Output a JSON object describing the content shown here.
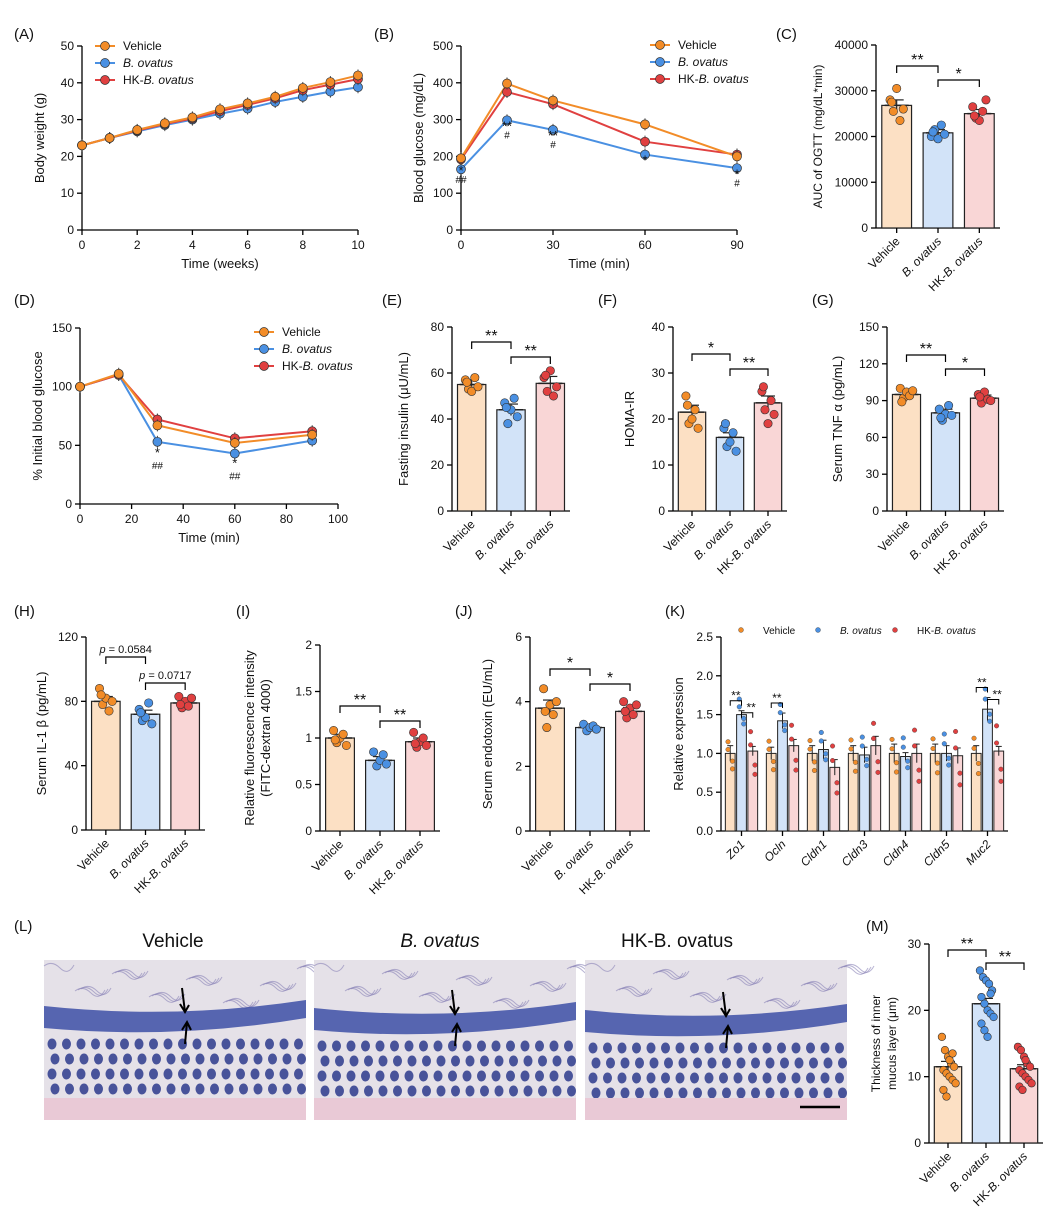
{
  "colors": {
    "vehicle": "#F28C28",
    "ovatus": "#4A90E2",
    "hk": "#E04040",
    "vehicle_fill": "#FCE0C4",
    "ovatus_fill": "#D2E3F8",
    "hk_fill": "#F9D6D6"
  },
  "panel_letters": {
    "A": "(A)",
    "B": "(B)",
    "C": "(C)",
    "D": "(D)",
    "E": "(E)",
    "F": "(F)",
    "G": "(G)",
    "H": "(H)",
    "I": "(I)",
    "J": "(J)",
    "K": "(K)",
    "L": "(L)",
    "M": "(M)"
  },
  "legend": {
    "vehicle": "Vehicle",
    "ovatus": "B. ovatus",
    "hk": "HK-B. ovatus"
  },
  "group_labels": [
    "Vehicle",
    "B. ovatus",
    "HK-B. ovatus"
  ],
  "histology": {
    "titles": [
      "Vehicle",
      "B. ovatus",
      "HK-B. ovatus"
    ]
  },
  "chart_data": [
    {
      "id": "A",
      "type": "line",
      "xlabel": "Time (weeks)",
      "ylabel": "Body weight (g)",
      "xlim": [
        0,
        10
      ],
      "ylim": [
        0,
        50
      ],
      "xticks": [
        0,
        2,
        4,
        6,
        8,
        10
      ],
      "yticks": [
        0,
        10,
        20,
        30,
        40,
        50
      ],
      "series": [
        {
          "name": "Vehicle",
          "x": [
            0,
            1,
            2,
            3,
            4,
            5,
            6,
            7,
            8,
            9,
            10
          ],
          "y": [
            23,
            25,
            27.2,
            29,
            30.6,
            32.8,
            34.4,
            36.2,
            38.6,
            40.2,
            42
          ]
        },
        {
          "name": "B. ovatus",
          "x": [
            0,
            1,
            2,
            3,
            4,
            5,
            6,
            7,
            8,
            9,
            10
          ],
          "y": [
            23,
            25,
            26.8,
            28.5,
            30,
            31.6,
            33,
            34.8,
            36.2,
            37.6,
            38.8
          ]
        },
        {
          "name": "HK-B. ovatus",
          "x": [
            0,
            1,
            2,
            3,
            4,
            5,
            6,
            7,
            8,
            9,
            10
          ],
          "y": [
            23,
            25,
            27,
            28.8,
            30.3,
            32.3,
            34,
            35.8,
            38,
            39.5,
            41
          ]
        }
      ]
    },
    {
      "id": "B",
      "type": "line",
      "xlabel": "Time (min)",
      "ylabel": "Blood glucose (mg/dL)",
      "xlim": [
        0,
        90
      ],
      "ylim": [
        0,
        500
      ],
      "xticks": [
        0,
        30,
        60,
        90
      ],
      "yticks": [
        0,
        100,
        200,
        300,
        400,
        500
      ],
      "series": [
        {
          "name": "Vehicle",
          "x": [
            0,
            15,
            30,
            60,
            90
          ],
          "y": [
            195,
            398,
            352,
            287,
            200
          ]
        },
        {
          "name": "B. ovatus",
          "x": [
            0,
            15,
            30,
            60,
            90
          ],
          "y": [
            165,
            298,
            272,
            205,
            168
          ]
        },
        {
          "name": "HK-B. ovatus",
          "x": [
            0,
            15,
            30,
            60,
            90
          ],
          "y": [
            192,
            375,
            342,
            240,
            205
          ]
        }
      ],
      "annotations": [
        {
          "x": 0,
          "y": 150,
          "text": "*"
        },
        {
          "x": 0,
          "y": 128,
          "text": "##"
        },
        {
          "x": 15,
          "y": 270,
          "text": "**"
        },
        {
          "x": 15,
          "y": 248,
          "text": "#"
        },
        {
          "x": 30,
          "y": 245,
          "text": "**"
        },
        {
          "x": 30,
          "y": 223,
          "text": "#"
        },
        {
          "x": 60,
          "y": 178,
          "text": "*"
        },
        {
          "x": 90,
          "y": 140,
          "text": "*"
        },
        {
          "x": 90,
          "y": 118,
          "text": "#"
        }
      ]
    },
    {
      "id": "C",
      "type": "bar",
      "ylabel": "AUC of OGTT (mg/dL*min)",
      "ylim": [
        0,
        40000
      ],
      "yticks": [
        0,
        10000,
        20000,
        30000,
        40000
      ],
      "categories": [
        "Vehicle",
        "B. ovatus",
        "HK-B. ovatus"
      ],
      "values": [
        26800,
        20800,
        25000
      ],
      "errors": [
        1200,
        700,
        900
      ],
      "points": [
        [
          28000,
          25500,
          30500,
          23500,
          26000,
          27500
        ],
        [
          20000,
          21500,
          19500,
          22500,
          20500,
          21000
        ],
        [
          26500,
          24000,
          23500,
          25500,
          28000,
          24500
        ]
      ],
      "sig": [
        {
          "a": 0,
          "b": 1,
          "text": "**"
        },
        {
          "a": 1,
          "b": 2,
          "text": "*"
        }
      ]
    },
    {
      "id": "D",
      "type": "line",
      "xlabel": "Time (min)",
      "ylabel": "% Initial blood glucose",
      "xlim": [
        0,
        100
      ],
      "ylim": [
        0,
        150
      ],
      "xticks": [
        0,
        20,
        40,
        60,
        80,
        100
      ],
      "yticks": [
        0,
        50,
        100,
        150
      ],
      "series": [
        {
          "name": "Vehicle",
          "x": [
            0,
            15,
            30,
            60,
            90
          ],
          "y": [
            100,
            111,
            67,
            52,
            59
          ]
        },
        {
          "name": "B. ovatus",
          "x": [
            0,
            15,
            30,
            60,
            90
          ],
          "y": [
            100,
            110,
            53,
            43,
            54
          ]
        },
        {
          "name": "HK-B. ovatus",
          "x": [
            0,
            15,
            30,
            60,
            90
          ],
          "y": [
            100,
            110,
            72,
            56,
            62
          ]
        }
      ],
      "annotations": [
        {
          "x": 30,
          "y": 40,
          "text": "*"
        },
        {
          "x": 30,
          "y": 30,
          "text": "##"
        },
        {
          "x": 60,
          "y": 31,
          "text": "*"
        },
        {
          "x": 60,
          "y": 21,
          "text": "##"
        }
      ]
    },
    {
      "id": "E",
      "type": "bar",
      "ylabel": "Fasting insulin (μU/mL)",
      "ylim": [
        0,
        80
      ],
      "yticks": [
        0,
        20,
        40,
        60,
        80
      ],
      "categories": [
        "Vehicle",
        "B. ovatus",
        "HK-B. ovatus"
      ],
      "values": [
        55,
        44,
        55.5
      ],
      "errors": [
        2,
        2.5,
        3
      ],
      "points": [
        [
          57,
          53,
          52,
          58,
          54,
          56
        ],
        [
          47,
          38,
          44,
          49,
          41,
          45
        ],
        [
          58,
          52,
          61,
          50,
          54,
          59
        ]
      ],
      "sig": [
        {
          "a": 0,
          "b": 1,
          "text": "**"
        },
        {
          "a": 1,
          "b": 2,
          "text": "**"
        }
      ]
    },
    {
      "id": "F",
      "type": "bar",
      "ylabel": "HOMA-IR",
      "ylim": [
        0,
        40
      ],
      "yticks": [
        0,
        10,
        20,
        30,
        40
      ],
      "categories": [
        "Vehicle",
        "B. ovatus",
        "HK-B. ovatus"
      ],
      "values": [
        21.5,
        16,
        23.5
      ],
      "errors": [
        1.5,
        1,
        1.5
      ],
      "points": [
        [
          25,
          19,
          20,
          22,
          18,
          23
        ],
        [
          18,
          14,
          15,
          17,
          13,
          19
        ],
        [
          26,
          22,
          19,
          24,
          21,
          27
        ]
      ],
      "sig": [
        {
          "a": 0,
          "b": 1,
          "text": "*"
        },
        {
          "a": 1,
          "b": 2,
          "text": "**"
        }
      ]
    },
    {
      "id": "G",
      "type": "bar",
      "ylabel": "Serum TNF α (pg/mL)",
      "ylim": [
        0,
        150
      ],
      "yticks": [
        0,
        30,
        60,
        90,
        120,
        150
      ],
      "categories": [
        "Vehicle",
        "B. ovatus",
        "HK-B. ovatus"
      ],
      "values": [
        95,
        80,
        92
      ],
      "errors": [
        3,
        3,
        2.5
      ],
      "points": [
        [
          100,
          92,
          97,
          94,
          98,
          89
        ],
        [
          83,
          74,
          79,
          86,
          78,
          76
        ],
        [
          95,
          88,
          97,
          91,
          90,
          93
        ]
      ],
      "sig": [
        {
          "a": 0,
          "b": 1,
          "text": "**"
        },
        {
          "a": 1,
          "b": 2,
          "text": "*"
        }
      ]
    },
    {
      "id": "H",
      "type": "bar",
      "ylabel": "Serum IL-1 β (pg/mL)",
      "ylim": [
        0,
        120
      ],
      "yticks": [
        0,
        40,
        80,
        120
      ],
      "categories": [
        "Vehicle",
        "B. ovatus",
        "HK-B. ovatus"
      ],
      "values": [
        80,
        72,
        79
      ],
      "errors": [
        3,
        2.5,
        2
      ],
      "points": [
        [
          88,
          78,
          82,
          74,
          80,
          84
        ],
        [
          75,
          68,
          70,
          79,
          66,
          73
        ],
        [
          83,
          76,
          80,
          77,
          82,
          78
        ]
      ],
      "sig": [
        {
          "a": 0,
          "b": 1,
          "text": "p = 0.0584"
        },
        {
          "a": 1,
          "b": 2,
          "text": "p = 0.0717"
        }
      ]
    },
    {
      "id": "I",
      "type": "bar",
      "ylabel": "Relative fluorescence intensity (FITC-dextran 4000)",
      "ylim": [
        0,
        2.0
      ],
      "yticks": [
        0,
        0.5,
        1.0,
        1.5,
        2.0
      ],
      "categories": [
        "Vehicle",
        "B. ovatus",
        "HK-B. ovatus"
      ],
      "values": [
        1.0,
        0.76,
        0.96
      ],
      "errors": [
        0.04,
        0.04,
        0.04
      ],
      "points": [
        [
          1.08,
          0.95,
          1.0,
          1.04,
          0.92,
          0.98
        ],
        [
          0.85,
          0.7,
          0.76,
          0.82,
          0.72
        ],
        [
          1.06,
          0.9,
          0.96,
          1.0,
          0.92,
          0.94
        ]
      ],
      "sig": [
        {
          "a": 0,
          "b": 1,
          "text": "**"
        },
        {
          "a": 1,
          "b": 2,
          "text": "**"
        }
      ]
    },
    {
      "id": "J",
      "type": "bar",
      "ylabel": "Serum endotoxin (EU/mL)",
      "ylim": [
        0,
        6
      ],
      "yticks": [
        0,
        2,
        4,
        6
      ],
      "categories": [
        "Vehicle",
        "B. ovatus",
        "HK-B. ovatus"
      ],
      "values": [
        3.8,
        3.2,
        3.7
      ],
      "errors": [
        0.25,
        0.08,
        0.12
      ],
      "points": [
        [
          4.4,
          3.2,
          3.9,
          3.6,
          4.0,
          3.7
        ],
        [
          3.3,
          3.1,
          3.2,
          3.25,
          3.15
        ],
        [
          4.0,
          3.5,
          3.8,
          3.6,
          3.9,
          3.7
        ]
      ],
      "sig": [
        {
          "a": 0,
          "b": 1,
          "text": "*"
        },
        {
          "a": 1,
          "b": 2,
          "text": "*"
        }
      ]
    },
    {
      "id": "K",
      "type": "grouped-bar",
      "ylabel": "Relative expression",
      "ylim": [
        0,
        2.5
      ],
      "yticks": [
        0.0,
        0.5,
        1.0,
        1.5,
        2.0,
        2.5
      ],
      "categories": [
        "Zo1",
        "Ocln",
        "Cldn1",
        "Cldn3",
        "Cldn4",
        "Cldn5",
        "Muc2"
      ],
      "series": [
        {
          "name": "Vehicle",
          "values": [
            1.0,
            1.0,
            1.0,
            1.0,
            1.0,
            1.0,
            1.0
          ]
        },
        {
          "name": "B. ovatus",
          "values": [
            1.5,
            1.42,
            1.05,
            0.98,
            0.96,
            1.0,
            1.57
          ]
        },
        {
          "name": "HK-B. ovatus",
          "values": [
            1.03,
            1.1,
            0.82,
            1.1,
            1.0,
            0.97,
            1.03
          ]
        }
      ],
      "errors": [
        [
          0.1,
          0.08,
          0.1,
          0.1,
          0.12,
          0.12,
          0.1
        ],
        [
          0.05,
          0.1,
          0.12,
          0.1,
          0.05,
          0.1,
          0.15
        ],
        [
          0.06,
          0.08,
          0.1,
          0.12,
          0.12,
          0.1,
          0.06
        ]
      ],
      "sig": [
        {
          "cat": 0,
          "text": "**"
        },
        {
          "cat": 1,
          "text": "**"
        },
        {
          "cat": 6,
          "text": "**"
        }
      ]
    },
    {
      "id": "M",
      "type": "bar",
      "ylabel": "Thickness of inner mucus layer (μm)",
      "ylim": [
        0,
        30
      ],
      "yticks": [
        0,
        10,
        20,
        30
      ],
      "categories": [
        "Vehicle",
        "B. ovatus",
        "HK-B. ovatus"
      ],
      "values": [
        11.5,
        21,
        11.2
      ],
      "errors": [
        0.8,
        0.8,
        0.6
      ],
      "points": [
        [
          16,
          14,
          13,
          12,
          11.5,
          11,
          10.5,
          10,
          9.5,
          9,
          8,
          7,
          12.5,
          13.5
        ],
        [
          26,
          25,
          24.5,
          24,
          23,
          22,
          21,
          20,
          19.5,
          19,
          18,
          17,
          16,
          22.5
        ],
        [
          14.5,
          14,
          13,
          12,
          11.5,
          11,
          10.5,
          10,
          9.5,
          9,
          8.5,
          8,
          12.5
        ]
      ],
      "sig": [
        {
          "a": 0,
          "b": 1,
          "text": "**"
        },
        {
          "a": 1,
          "b": 2,
          "text": "**"
        }
      ]
    }
  ]
}
